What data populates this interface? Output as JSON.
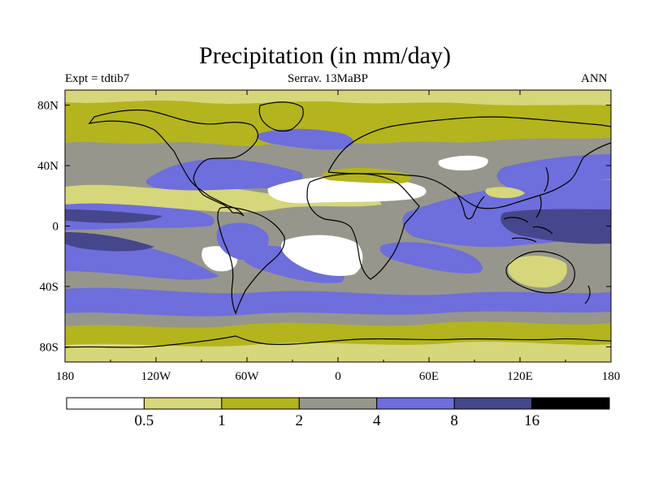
{
  "title": "Precipitation (in mm/day)",
  "subtitle_left": "Expt = tdtib7",
  "subtitle_center": "Serrav.   13MaBP",
  "subtitle_right": "ANN",
  "colors": {
    "bin0": "#ffffff",
    "bin1": "#d6d67a",
    "bin2": "#b4b41e",
    "bin3": "#96968c",
    "bin4": "#6e6edc",
    "bin5": "#46468c",
    "bin6": "#000000",
    "coast": "#000000"
  },
  "chart_data": {
    "type": "map-contour",
    "title": "Precipitation (in mm/day)",
    "variable": "Precipitation",
    "units": "mm/day",
    "experiment": "tdtib7",
    "period": "Serrav. 13MaBP",
    "season": "ANN",
    "x_ticks": [
      "180",
      "120W",
      "60W",
      "0",
      "60E",
      "120E",
      "180"
    ],
    "y_ticks": [
      "80N",
      "40N",
      "0",
      "40S",
      "80S"
    ],
    "levels": [
      0.5,
      1,
      2,
      4,
      8,
      16
    ],
    "level_labels": [
      "0.5",
      "1",
      "2",
      "4",
      "8",
      "16"
    ]
  }
}
